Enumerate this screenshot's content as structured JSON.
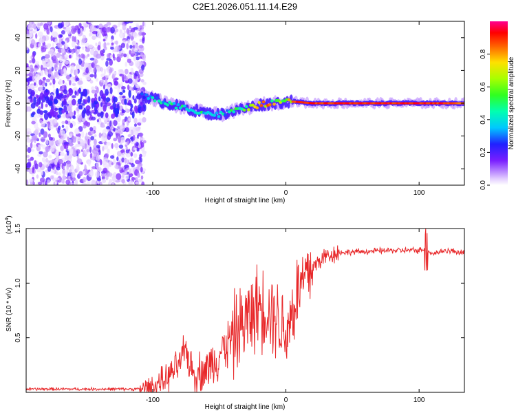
{
  "title": "C2E1.2026.051.11.14.E29",
  "chart_data": [
    {
      "type": "heatmap",
      "panel": "spectrogram",
      "xlabel": "Height of straight line (km)",
      "ylabel": "Frequency (Hz)",
      "xlim": [
        -195,
        134
      ],
      "ylim": [
        -50,
        50
      ],
      "xticks": [
        -100,
        0,
        100
      ],
      "xtick_labels": [
        "-100",
        "0",
        "100"
      ],
      "yticks": [
        -40,
        -20,
        0,
        20,
        40
      ],
      "ytick_labels": [
        "-40",
        "-20",
        "0",
        "20",
        "40"
      ],
      "noise_region_x": [
        -195,
        -106
      ],
      "ridge": {
        "description": "dominant frequency ridge vs height",
        "x": [
          -110,
          -100,
          -90,
          -80,
          -70,
          -60,
          -50,
          -40,
          -30,
          -20,
          -10,
          0,
          5,
          20,
          40,
          60,
          80,
          100,
          120,
          134
        ],
        "y": [
          5,
          3,
          0,
          -2,
          -4,
          -6,
          -7,
          -5,
          -3,
          -1,
          0,
          1,
          1,
          0,
          0,
          0,
          0,
          0,
          0,
          0
        ],
        "amplitude": [
          0.3,
          0.45,
          0.5,
          0.55,
          0.5,
          0.5,
          0.4,
          0.6,
          0.8,
          0.85,
          0.85,
          0.9,
          0.95,
          0.95,
          0.95,
          0.95,
          0.95,
          0.95,
          0.95,
          0.9
        ]
      },
      "colorbar": {
        "label": "Normalized spectral amplitude",
        "range": [
          0,
          1
        ],
        "ticks": [
          0.0,
          0.2,
          0.4,
          0.6,
          0.8
        ],
        "tick_labels": [
          "0.0",
          "0.2",
          "0.4",
          "0.6",
          "0.8"
        ]
      }
    },
    {
      "type": "line",
      "panel": "snr",
      "xlabel": "Height of straight line (km)",
      "ylabel": "SNR (10 * v/v)",
      "scale_label": "(x10",
      "scale_exponent": "4",
      "scale_suffix": ")",
      "xlim": [
        -195,
        134
      ],
      "ylim": [
        0,
        1.5
      ],
      "xticks": [
        -100,
        0,
        100
      ],
      "xtick_labels": [
        "-100",
        "0",
        "100"
      ],
      "yticks": [
        0.5,
        1.0,
        1.5
      ],
      "ytick_labels": [
        "0.5",
        "1.0",
        "1.5"
      ],
      "color": "#e8282a",
      "series": [
        {
          "name": "SNR",
          "x": [
            -195,
            -160,
            -130,
            -110,
            -100,
            -90,
            -80,
            -75,
            -70,
            -60,
            -50,
            -40,
            -30,
            -20,
            -10,
            0,
            5,
            10,
            20,
            30,
            40,
            60,
            80,
            100,
            105,
            110,
            120,
            134
          ],
          "y": [
            0.03,
            0.03,
            0.03,
            0.03,
            0.05,
            0.12,
            0.25,
            0.4,
            0.18,
            0.2,
            0.35,
            0.5,
            0.65,
            0.8,
            0.75,
            0.55,
            0.75,
            0.95,
            1.15,
            1.25,
            1.28,
            1.29,
            1.3,
            1.3,
            1.32,
            1.27,
            1.3,
            1.28
          ]
        }
      ]
    }
  ]
}
